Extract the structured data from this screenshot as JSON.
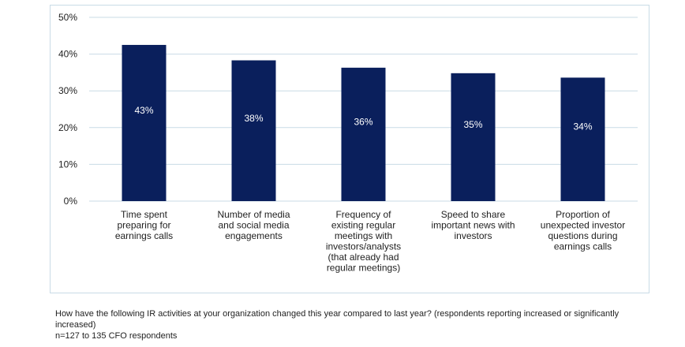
{
  "chart_data": {
    "type": "bar",
    "title": "",
    "xlabel": "",
    "ylabel": "",
    "ylim": [
      0,
      50
    ],
    "yticks": [
      "0%",
      "10%",
      "20%",
      "30%",
      "40%",
      "50%"
    ],
    "ytick_values": [
      0,
      10,
      20,
      30,
      40,
      50
    ],
    "gridlines": true,
    "bar_color": "#0a1f5c",
    "grid_color": "#c9dbe6",
    "categories": [
      [
        "Time spent",
        "preparing for",
        "earnings calls"
      ],
      [
        "Number of media",
        "and social media",
        "engagements"
      ],
      [
        "Frequency of",
        "existing regular",
        "meetings with",
        "investors/analysts",
        "(that already had",
        "regular meetings)"
      ],
      [
        "Speed to share",
        "important news with",
        "investors"
      ],
      [
        "Proportion of",
        "unexpected investor",
        "questions during",
        "earnings calls"
      ]
    ],
    "values": [
      42.5,
      38.3,
      36.3,
      34.8,
      33.6
    ],
    "data_labels": [
      "43%",
      "38%",
      "36%",
      "35%",
      "34%"
    ]
  },
  "footnote": {
    "question": "How have the following IR activities at your organization changed this year compared to last year? (respondents reporting increased or significantly increased)",
    "sample": "n=127 to 135 CFO respondents"
  }
}
